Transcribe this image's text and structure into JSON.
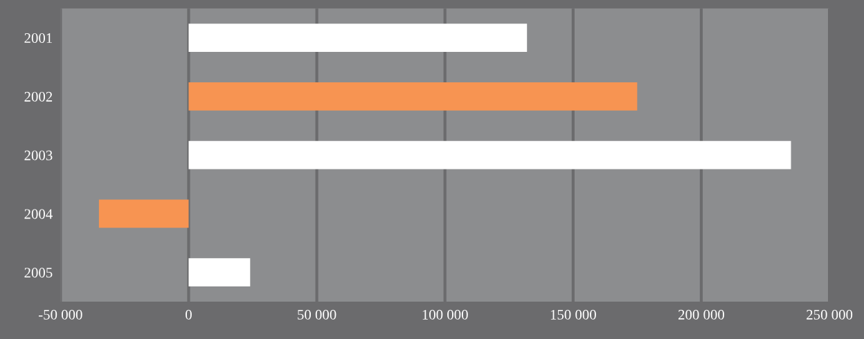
{
  "chart_data": {
    "type": "bar",
    "orientation": "horizontal",
    "categories": [
      "2001",
      "2002",
      "2003",
      "2004",
      "2005"
    ],
    "values": [
      132000,
      175000,
      235000,
      -35000,
      24000
    ],
    "colors": [
      "#ffffff",
      "#f79452",
      "#ffffff",
      "#f79452",
      "#ffffff"
    ],
    "xlim": [
      -50000,
      250000
    ],
    "xticks": [
      {
        "value": -50000,
        "label": "-50 000"
      },
      0,
      {
        "value": 50000,
        "label": "50 000"
      },
      {
        "value": 100000,
        "label": "100 000"
      },
      {
        "value": 150000,
        "label": "150 000"
      },
      {
        "value": 200000,
        "label": "200 000"
      },
      {
        "value": 250000,
        "label": "250 000"
      }
    ],
    "grid": "x"
  }
}
